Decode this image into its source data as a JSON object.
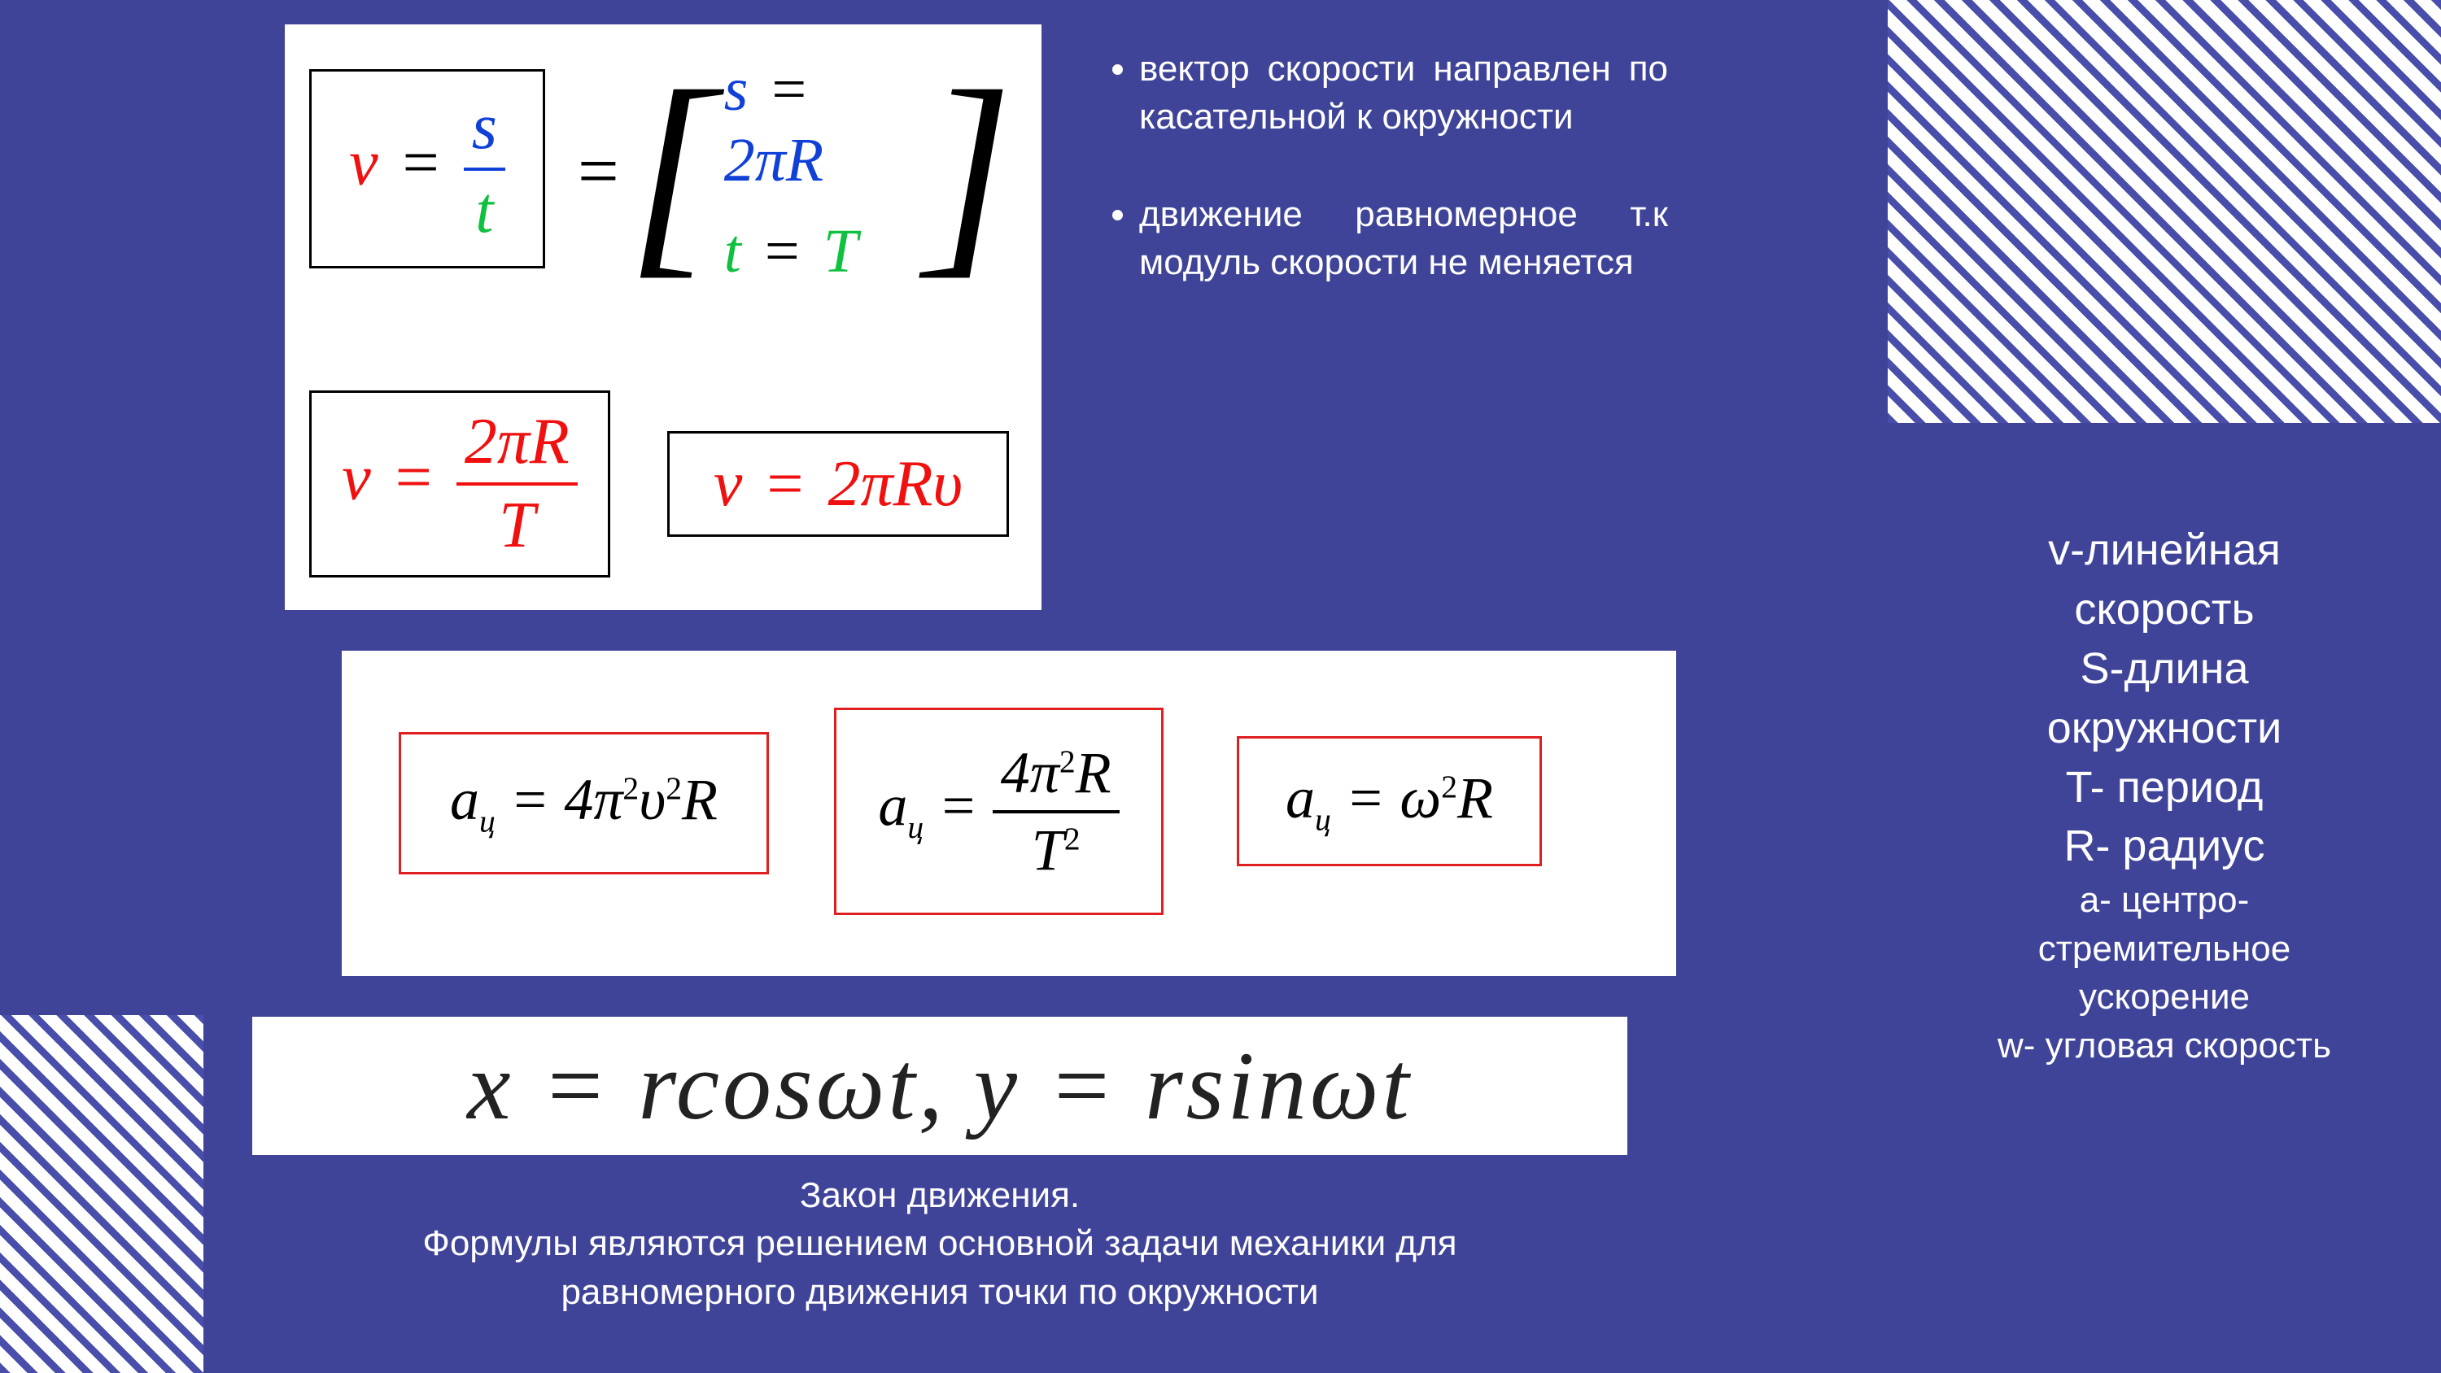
{
  "colors": {
    "background": "#3f4499",
    "stripe": "#494eaa",
    "white": "#ffffff",
    "formula_red": "#f01010",
    "formula_blue": "#1040d8",
    "formula_green": "#10c040",
    "red_border": "#e02020"
  },
  "bullets": [
    "вектор скорости направлен по касательной к окружности",
    "движение равномерное т.к модуль скорости не меняется"
  ],
  "caption_line1": "Закон движения.",
  "caption_line2": "Формулы  являются решением основной задачи механики для",
  "caption_line3": "равномерного движения точки по окружности",
  "side": {
    "l1": "v-линейная",
    "l2": "скорость",
    "l3": "S-длина",
    "l4": "окружности",
    "l5": "T- период",
    "l6": "R- радиус",
    "l7": "a-  центро-",
    "l8": "стремительное",
    "l9": "ускорение",
    "l10": "w- угловая скорость"
  },
  "formulas": {
    "card1": {
      "box_a": {
        "lhs_v": "v",
        "eq": "=",
        "num_s": "s",
        "den_t": "t"
      },
      "bracket_eq": "=",
      "bracket_top": {
        "s": "s",
        "eq": "=",
        "rhs": "2πR"
      },
      "bracket_bot": {
        "t": "t",
        "eq": "=",
        "rhs": "T"
      },
      "box_c": {
        "lhs_v": "v",
        "eq": "=",
        "num": "2πR",
        "den": "T"
      },
      "box_d": {
        "lhs_v": "v",
        "eq": "=",
        "rhs": "2πRυ"
      }
    },
    "card2": {
      "b1": "aᵤ = 4π²υ²R",
      "b2_lhs": "aᵤ =",
      "b2_num": "4π²R",
      "b2_den": "T²",
      "b3": "aᵤ = ω²R",
      "sub_char": "ц"
    },
    "card3": "x = rcosωt, y = rsinωt"
  }
}
